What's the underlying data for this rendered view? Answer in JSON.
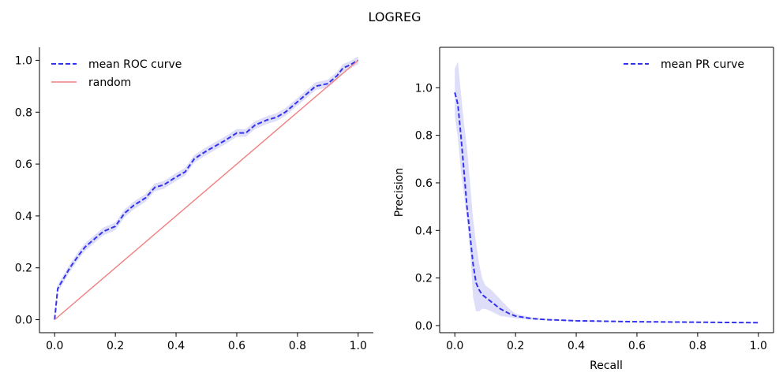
{
  "figure": {
    "suptitle": "LOGREG"
  },
  "chart_data": [
    {
      "type": "line",
      "title": "",
      "xlabel": "",
      "ylabel": "",
      "xlim": [
        -0.05,
        1.05
      ],
      "ylim": [
        -0.05,
        1.05
      ],
      "xticks": [
        "0.0",
        "0.2",
        "0.4",
        "0.6",
        "0.8",
        "1.0"
      ],
      "yticks": [
        "0.0",
        "0.2",
        "0.4",
        "0.6",
        "0.8",
        "1.0"
      ],
      "legend_position": "upper-left",
      "spines": "left-bottom",
      "series": [
        {
          "name": "mean ROC curve",
          "style": "dashed",
          "color": "#3333ee",
          "band_color": "#d8d8f8",
          "x": [
            0.0,
            0.01,
            0.03,
            0.05,
            0.08,
            0.1,
            0.13,
            0.16,
            0.2,
            0.23,
            0.26,
            0.3,
            0.33,
            0.36,
            0.4,
            0.43,
            0.46,
            0.5,
            0.53,
            0.56,
            0.6,
            0.63,
            0.66,
            0.7,
            0.73,
            0.76,
            0.8,
            0.83,
            0.86,
            0.9,
            0.93,
            0.95,
            0.97,
            1.0
          ],
          "y": [
            0.0,
            0.12,
            0.16,
            0.2,
            0.25,
            0.28,
            0.31,
            0.34,
            0.36,
            0.41,
            0.44,
            0.47,
            0.51,
            0.52,
            0.55,
            0.57,
            0.62,
            0.65,
            0.67,
            0.69,
            0.72,
            0.72,
            0.75,
            0.77,
            0.78,
            0.8,
            0.84,
            0.87,
            0.9,
            0.91,
            0.94,
            0.97,
            0.98,
            1.0
          ],
          "band": 0.015
        },
        {
          "name": "random",
          "style": "solid",
          "color": "#f08080",
          "x": [
            0.0,
            1.0
          ],
          "y": [
            0.0,
            1.0
          ]
        }
      ]
    },
    {
      "type": "line",
      "title": "",
      "xlabel": "Recall",
      "ylabel": "Precision",
      "xlim": [
        -0.05,
        1.05
      ],
      "ylim": [
        -0.03,
        1.17
      ],
      "xticks": [
        "0.0",
        "0.2",
        "0.4",
        "0.6",
        "0.8",
        "1.0"
      ],
      "yticks": [
        "0.0",
        "0.2",
        "0.4",
        "0.6",
        "0.8",
        "1.0"
      ],
      "legend_position": "upper-right",
      "spines": "all",
      "series": [
        {
          "name": "mean PR curve",
          "style": "dashed",
          "color": "#3333ee",
          "band_color": "#d8d8f8",
          "x": [
            0.0,
            0.01,
            0.02,
            0.03,
            0.04,
            0.05,
            0.06,
            0.07,
            0.08,
            0.09,
            0.1,
            0.12,
            0.15,
            0.18,
            0.2,
            0.25,
            0.3,
            0.4,
            0.5,
            0.6,
            0.7,
            0.8,
            0.9,
            1.0
          ],
          "y": [
            0.98,
            0.93,
            0.8,
            0.65,
            0.5,
            0.38,
            0.26,
            0.18,
            0.15,
            0.13,
            0.12,
            0.1,
            0.07,
            0.05,
            0.04,
            0.03,
            0.025,
            0.02,
            0.018,
            0.016,
            0.015,
            0.014,
            0.013,
            0.012
          ],
          "y_upper": [
            1.08,
            1.11,
            0.98,
            0.85,
            0.75,
            0.6,
            0.45,
            0.35,
            0.26,
            0.2,
            0.17,
            0.15,
            0.11,
            0.07,
            0.05,
            0.035,
            0.028,
            0.022,
            0.019,
            0.017,
            0.016,
            0.015,
            0.014,
            0.013
          ],
          "y_lower": [
            0.88,
            0.79,
            0.65,
            0.55,
            0.45,
            0.32,
            0.12,
            0.06,
            0.06,
            0.07,
            0.07,
            0.06,
            0.04,
            0.035,
            0.03,
            0.025,
            0.022,
            0.018,
            0.017,
            0.015,
            0.014,
            0.013,
            0.012,
            0.011
          ]
        }
      ]
    }
  ]
}
